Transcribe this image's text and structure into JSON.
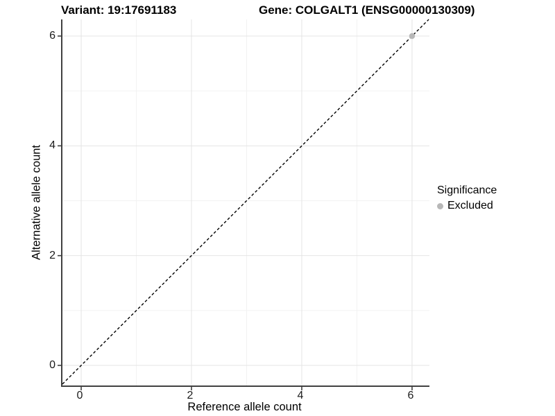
{
  "titles": {
    "left": "Variant: 19:17691183",
    "right": "Gene: COLGALT1 (ENSG00000130309)"
  },
  "axes": {
    "x": {
      "label": "Reference allele count",
      "tick_labels": [
        "0",
        "2",
        "4",
        "6"
      ]
    },
    "y": {
      "label": "Alternative allele count",
      "tick_labels": [
        "0",
        "2",
        "4",
        "6"
      ]
    }
  },
  "legend": {
    "title": "Significance",
    "items": [
      {
        "label": "Excluded",
        "color": "#b8b8b8"
      }
    ]
  },
  "colors": {
    "grid_major": "#e4e4e4",
    "grid_minor": "#f2f2f2",
    "axis_line": "#404040",
    "reference_line": "#000000",
    "point": "#b8b8b8",
    "text": "#000000"
  },
  "chart_data": {
    "type": "scatter",
    "title": "Variant: 19:17691183 | Gene: COLGALT1 (ENSG00000130309)",
    "xlabel": "Reference allele count",
    "ylabel": "Alternative allele count",
    "xlim": [
      -0.34,
      6.315
    ],
    "ylim": [
      -0.366,
      6.303
    ],
    "x_ticks": [
      0,
      2,
      4,
      6
    ],
    "y_ticks": [
      0,
      2,
      4,
      6
    ],
    "grid": "major and minor gridlines, light gray on white panel",
    "legend_position": "right-center",
    "series": [
      {
        "name": "Excluded",
        "color": "#b8b8b8",
        "point_radius": 4.2,
        "points": [
          {
            "x": 6,
            "y": 6
          }
        ]
      }
    ],
    "reference_line": {
      "type": "identity y=x",
      "style": "dashed",
      "color": "#000000",
      "width": 1.4
    }
  }
}
